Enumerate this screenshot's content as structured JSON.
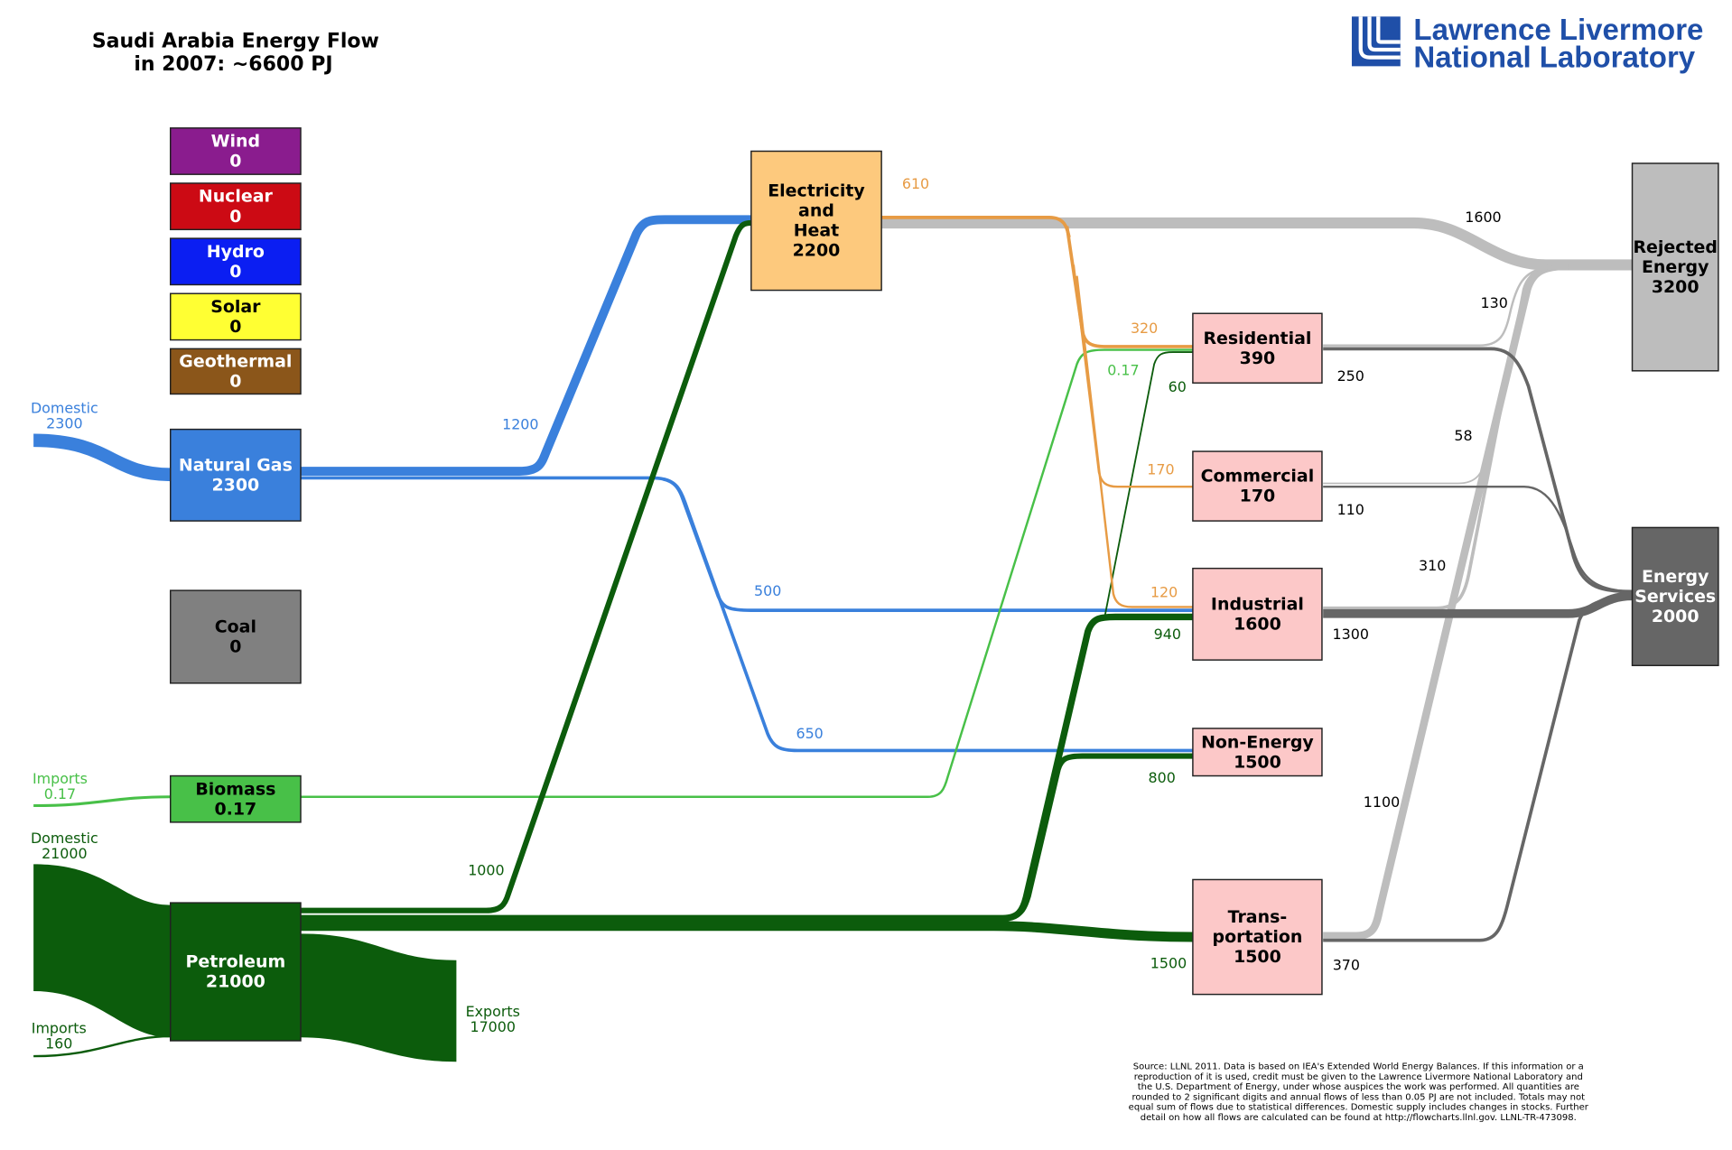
{
  "title": {
    "line1": "Saudi Arabia Energy Flow",
    "line2": "in 2007: ~6600 PJ"
  },
  "logo": {
    "line1": "Lawrence Livermore",
    "line2": "National Laboratory"
  },
  "colors": {
    "wind": "#8a1c8e",
    "nuclear": "#cc0a14",
    "hydro": "#0b1ef2",
    "solar": "#ffff33",
    "geothermal": "#8b561a",
    "natural_gas": "#3a80dc",
    "coal": "#808080",
    "biomass": "#48c048",
    "petroleum": "#0c5c0c",
    "electricity": "#fdc97d",
    "sector": "#fcc8c8",
    "rejected": "#bdbdbd",
    "services": "#666666",
    "elec_flow": "#e79b44"
  },
  "nodes": {
    "wind": {
      "lines": [
        "Wind",
        "0"
      ]
    },
    "nuclear": {
      "lines": [
        "Nuclear",
        "0"
      ]
    },
    "hydro": {
      "lines": [
        "Hydro",
        "0"
      ]
    },
    "solar": {
      "lines": [
        "Solar",
        "0"
      ]
    },
    "geothermal": {
      "lines": [
        "Geothermal",
        "0"
      ]
    },
    "natural_gas": {
      "lines": [
        "Natural Gas",
        "2300"
      ]
    },
    "coal": {
      "lines": [
        "Coal",
        "0"
      ]
    },
    "biomass": {
      "lines": [
        "Biomass",
        "0.17"
      ]
    },
    "petroleum": {
      "lines": [
        "Petroleum",
        "21000"
      ]
    },
    "electricity": {
      "lines": [
        "Electricity",
        "and",
        "Heat",
        "2200"
      ]
    },
    "residential": {
      "lines": [
        "Residential",
        "390"
      ]
    },
    "commercial": {
      "lines": [
        "Commercial",
        "170"
      ]
    },
    "industrial": {
      "lines": [
        "Industrial",
        "1600"
      ]
    },
    "non_energy": {
      "lines": [
        "Non-Energy",
        "1500"
      ]
    },
    "transportation": {
      "lines": [
        "Trans-",
        "portation",
        "1500"
      ]
    },
    "rejected": {
      "lines": [
        "Rejected",
        "Energy",
        "3200"
      ]
    },
    "services": {
      "lines": [
        "Energy",
        "Services",
        "2000"
      ]
    }
  },
  "flow_labels": {
    "gas_domestic": [
      "Domestic",
      "2300"
    ],
    "gas_to_elec": "1200",
    "gas_to_industrial": "500",
    "gas_to_nonenergy": "650",
    "biomass_imports": [
      "Imports",
      "0.17"
    ],
    "petro_domestic": [
      "Domestic",
      "21000"
    ],
    "petro_imports": [
      "Imports",
      "160"
    ],
    "petro_exports": [
      "Exports",
      "17000"
    ],
    "petro_to_elec": "1000",
    "petro_to_industrial": "940",
    "petro_to_nonenergy": "800",
    "petro_to_transport": "1500",
    "petro_to_residential": "60",
    "biomass_to_residential": "0.17",
    "elec_out": "610",
    "elec_to_residential": "320",
    "elec_to_commercial": "170",
    "elec_to_industrial": "120",
    "elec_to_rejected": "1600",
    "res_to_rejected": "130",
    "res_to_services": "250",
    "com_to_rejected": "58",
    "com_to_services": "110",
    "ind_to_rejected": "310",
    "ind_to_services": "1300",
    "trans_to_rejected": "1100",
    "trans_to_services": "370"
  },
  "footnote": [
    "Source: LLNL 2011.  Data is based on IEA's Extended World Energy Balances. If this information or a",
    "reproduction of it is used, credit must be given to the Lawrence Livermore National Laboratory and",
    "the U.S. Department of Energy, under whose auspices the work was performed.  All quantities are",
    "rounded to 2 significant digits and annual flows of less than 0.05 PJ are not included.  Totals may not",
    "equal sum of flows due to statistical differences.  Domestic supply includes changes in stocks.  Further",
    "detail on how all flows are calculated can be found at http://flowcharts.llnl.gov. LLNL-TR-473098."
  ]
}
